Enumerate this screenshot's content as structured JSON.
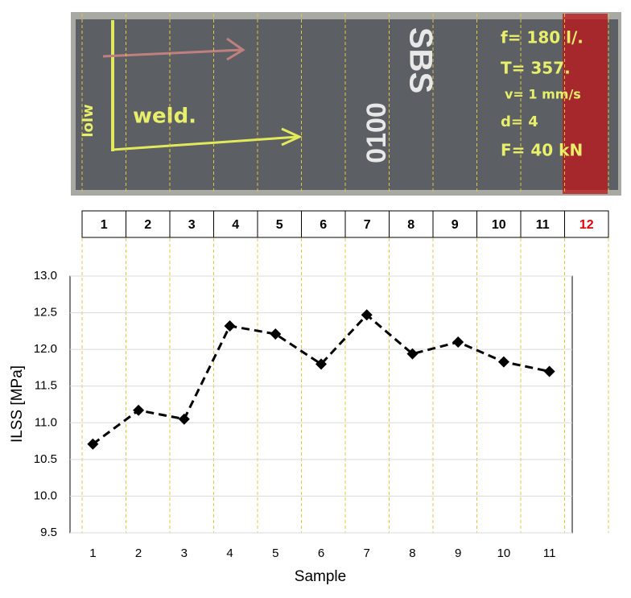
{
  "specimen": {
    "annotations": [
      "weld.",
      "SBS",
      "0100",
      "f= 180 l/.",
      "T= 357.",
      "v= 1 mm/s",
      "d= 4",
      "F= 40 kN",
      "lolw"
    ]
  },
  "strip": [
    {
      "label": "1"
    },
    {
      "label": "2"
    },
    {
      "label": "3"
    },
    {
      "label": "4"
    },
    {
      "label": "5"
    },
    {
      "label": "6"
    },
    {
      "label": "7"
    },
    {
      "label": "8"
    },
    {
      "label": "9"
    },
    {
      "label": "10"
    },
    {
      "label": "11"
    },
    {
      "label": "12",
      "color": "#e8000b"
    }
  ],
  "chart_data": {
    "type": "line",
    "x_label": "Sample",
    "y_label": "ILSS [MPa]",
    "categories": [
      "1",
      "2",
      "3",
      "4",
      "5",
      "6",
      "7",
      "8",
      "9",
      "10",
      "11"
    ],
    "values": [
      10.71,
      11.17,
      11.05,
      12.32,
      12.21,
      11.8,
      12.47,
      11.94,
      12.1,
      11.83,
      11.7
    ],
    "color": "#000000",
    "line_style": "dashed",
    "marker": "diamond",
    "ylim": [
      9.5,
      13
    ],
    "yticks": [
      9.5,
      {
        "value": 10,
        "label": "10.0"
      },
      10.5,
      {
        "value": 11,
        "label": "11.0"
      },
      11.5,
      {
        "value": 12,
        "label": "12.0"
      },
      12.5,
      {
        "value": 13,
        "label": "13.0"
      }
    ],
    "grid": true
  }
}
